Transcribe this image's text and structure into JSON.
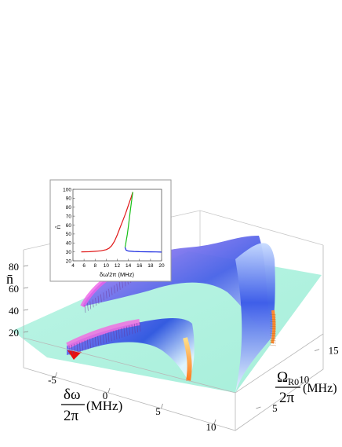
{
  "chart_data": [
    {
      "type": "surface",
      "axes": {
        "delta_omega": {
          "label_numerator": "δω",
          "label_denominator": "2π",
          "unit": "(MHz)",
          "ticks": [
            "-5",
            "0",
            "5",
            "10"
          ],
          "range": [
            -8,
            12
          ]
        },
        "omega_r0": {
          "label_numerator": "Ω",
          "label_subscript": "R0",
          "label_denominator": "2π",
          "unit": "(MHz)",
          "ticks": [
            "5",
            "10",
            "15"
          ],
          "range": [
            2,
            17
          ]
        },
        "n_bar": {
          "label": "n̄",
          "ticks": [
            "20",
            "40",
            "60",
            "80"
          ],
          "range": [
            15,
            95
          ]
        }
      },
      "description_colors": {
        "background_plane": "#aef2e0",
        "upper_branch": "#3a5ae8",
        "highlight": "#f070e8",
        "edge_orange": "#ff8a30",
        "edge_red": "#e81010"
      }
    },
    {
      "type": "line",
      "xlabel": "δω/2π (MHz)",
      "ylabel": "n̄",
      "xlim": [
        4,
        20
      ],
      "ylim": [
        20,
        100
      ],
      "xticks": [
        "4",
        "6",
        "8",
        "10",
        "12",
        "14",
        "16",
        "18",
        "20"
      ],
      "yticks": [
        "20",
        "30",
        "40",
        "50",
        "60",
        "70",
        "80",
        "90",
        "100"
      ],
      "series": [
        {
          "color": "#e01818",
          "x": [
            5.5,
            7,
            8,
            9,
            10,
            10.5,
            11,
            11.5,
            12,
            12.5,
            13,
            13.5,
            14,
            14.5,
            14.8
          ],
          "y": [
            30,
            30.2,
            30.6,
            31.2,
            32.5,
            34,
            37,
            42,
            49,
            57,
            65,
            73,
            82,
            91,
            97
          ]
        },
        {
          "color": "#18c018",
          "x": [
            14.8,
            14.6,
            14.4,
            14.2,
            14.0,
            13.8,
            13.6,
            13.5,
            13.4
          ],
          "y": [
            97,
            88,
            78,
            68,
            58,
            49,
            42,
            38,
            35
          ]
        },
        {
          "color": "#1828e0",
          "x": [
            13.4,
            13.6,
            14,
            15,
            16,
            17,
            18,
            19,
            20
          ],
          "y": [
            35,
            32,
            31,
            30.5,
            30.2,
            30.1,
            30,
            29.9,
            29.8
          ]
        }
      ]
    }
  ]
}
